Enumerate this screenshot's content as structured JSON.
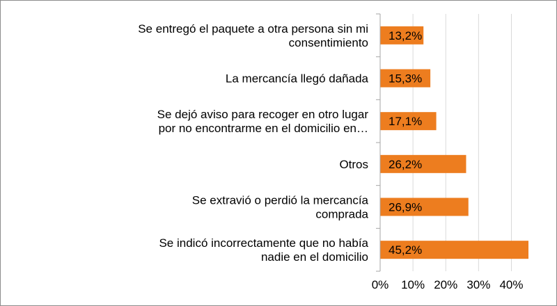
{
  "chart_data": {
    "type": "bar",
    "orientation": "horizontal",
    "title": "",
    "xlabel": "",
    "ylabel": "",
    "categories": [
      [
        "Se entregó el paquete a otra persona sin mi",
        "consentimiento"
      ],
      [
        "La mercancía llegó dañada"
      ],
      [
        "Se dejó aviso para recoger en otro lugar",
        "por no encontrarme en el domicilio en…"
      ],
      [
        "Otros"
      ],
      [
        "Se extravió o perdió la mercancía",
        "comprada"
      ],
      [
        "Se indicó incorrectamente que no había",
        "nadie en el domicilio"
      ]
    ],
    "values": [
      13.2,
      15.3,
      17.1,
      26.2,
      26.9,
      45.2
    ],
    "data_labels": [
      "13,2%",
      "15,3%",
      "17,1%",
      "26,2%",
      "26,9%",
      "45,2%"
    ],
    "x_ticks": [
      0,
      10,
      20,
      30,
      40
    ],
    "x_tick_labels": [
      "0%",
      "10%",
      "20%",
      "30%",
      "40%"
    ],
    "xlim": [
      0,
      45.2
    ],
    "grid": "vertical",
    "legend": "none",
    "colors": {
      "bar": "#ED7D1F",
      "grid": "#D9D9D9",
      "axis": "#A6A6A6",
      "text": "#000000"
    }
  }
}
